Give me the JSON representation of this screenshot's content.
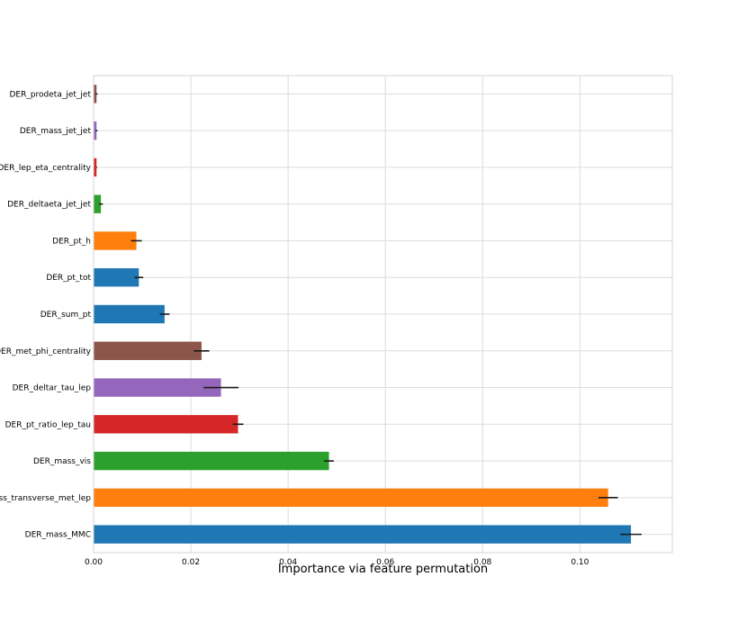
{
  "chart_data": {
    "type": "bar",
    "orientation": "horizontal",
    "title": "",
    "xlabel": "Importance via feature permutation",
    "ylabel": "",
    "xlim": [
      0,
      0.119
    ],
    "xticks": [
      "0.00",
      "0.02",
      "0.04",
      "0.06",
      "0.08",
      "0.10"
    ],
    "grid": true,
    "categories": [
      "DER_mass_MMC",
      "DER_mass_transverse_met_lep",
      "DER_mass_vis",
      "DER_pt_ratio_lep_tau",
      "DER_deltar_tau_lep",
      "DER_met_phi_centrality",
      "DER_sum_pt",
      "DER_pt_tot",
      "DER_pt_h",
      "DER_deltaeta_jet_jet",
      "DER_lep_eta_centrality",
      "DER_mass_jet_jet",
      "DER_prodeta_jet_jet"
    ],
    "values": [
      0.1105,
      0.1058,
      0.0484,
      0.0297,
      0.0262,
      0.0222,
      0.0146,
      0.0093,
      0.0088,
      0.0015,
      0.0006,
      0.0006,
      0.0006
    ],
    "errors": [
      0.0022,
      0.002,
      0.001,
      0.0011,
      0.0036,
      0.0016,
      0.001,
      0.0009,
      0.0011,
      0.0004,
      0.0001,
      0.0002,
      0.0002
    ],
    "colors": [
      "#1f77b4",
      "#ff7f0e",
      "#2ca02c",
      "#d62728",
      "#9467bd",
      "#8c564b",
      "#1f77b4",
      "#1f77b4",
      "#ff7f0e",
      "#2ca02c",
      "#d62728",
      "#9467bd",
      "#8c564b"
    ]
  }
}
